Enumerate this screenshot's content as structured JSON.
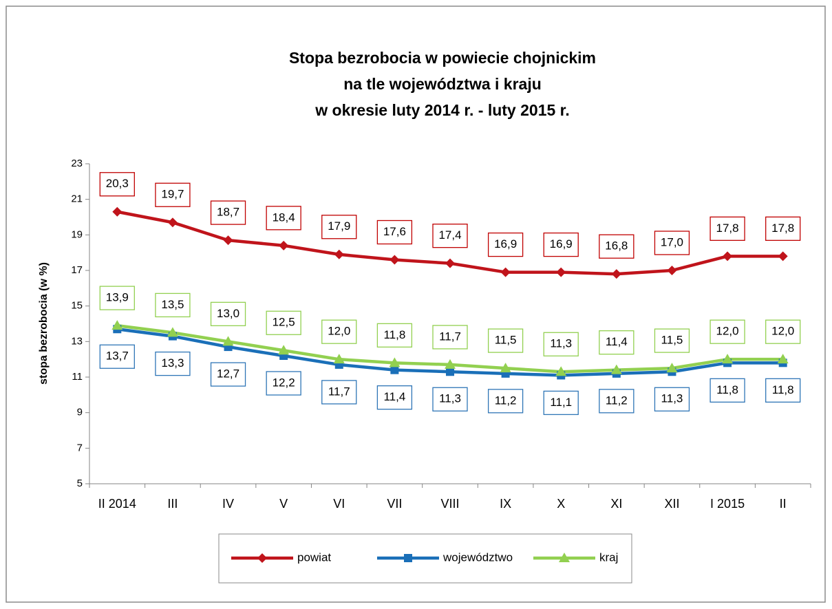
{
  "chart_data": {
    "type": "line",
    "title": [
      "Stopa bezrobocia w powiecie chojnickim",
      "na tle województwa i kraju",
      "w okresie luty 2014 r. - luty 2015 r."
    ],
    "y_label": "stopa bezrobocia (w %)",
    "categories": [
      "II 2014",
      "III",
      "IV",
      "V",
      "VI",
      "VII",
      "VIII",
      "IX",
      "X",
      "XI",
      "XII",
      "I 2015",
      "II"
    ],
    "ylim": [
      5,
      23
    ],
    "yticks": [
      5,
      7,
      9,
      11,
      13,
      15,
      17,
      19,
      21,
      23
    ],
    "legend": "bottom",
    "series": [
      {
        "name": "powiat",
        "color": "#c0141b",
        "marker": "diamond",
        "values": [
          20.3,
          19.7,
          18.7,
          18.4,
          17.9,
          17.6,
          17.4,
          16.9,
          16.9,
          16.8,
          17.0,
          17.8,
          17.8
        ],
        "value_labels": [
          "20,3",
          "19,7",
          "18,7",
          "18,4",
          "17,9",
          "17,6",
          "17,4",
          "16,9",
          "16,9",
          "16,8",
          "17,0",
          "17,8",
          "17,8"
        ]
      },
      {
        "name": "województwo",
        "color": "#1a6fb8",
        "marker": "square",
        "values": [
          13.7,
          13.3,
          12.7,
          12.2,
          11.7,
          11.4,
          11.3,
          11.2,
          11.1,
          11.2,
          11.3,
          11.8,
          11.8
        ],
        "value_labels": [
          "13,7",
          "13,3",
          "12,7",
          "12,2",
          "11,7",
          "11,4",
          "11,3",
          "11,2",
          "11,1",
          "11,2",
          "11,3",
          "11,8",
          "11,8"
        ]
      },
      {
        "name": "kraj",
        "color": "#92d050",
        "marker": "triangle",
        "values": [
          13.9,
          13.5,
          13.0,
          12.5,
          12.0,
          11.8,
          11.7,
          11.5,
          11.3,
          11.4,
          11.5,
          12.0,
          12.0
        ],
        "value_labels": [
          "13,9",
          "13,5",
          "13,0",
          "12,5",
          "12,0",
          "11,8",
          "11,7",
          "11,5",
          "11,3",
          "11,4",
          "11,5",
          "12,0",
          "12,0"
        ]
      }
    ]
  }
}
